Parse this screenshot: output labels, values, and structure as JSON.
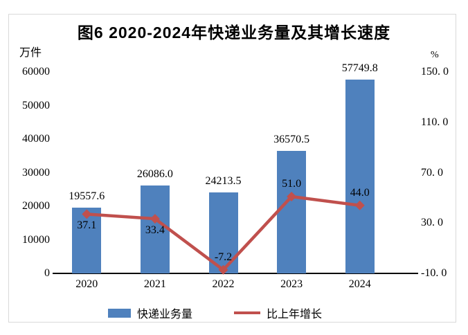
{
  "title": "图6 2020-2024年快递业务量及其增长速度",
  "left_axis": {
    "unit": "万件",
    "ticks": [
      {
        "label": "60000",
        "value": 60000
      },
      {
        "label": "50000",
        "value": 50000
      },
      {
        "label": "40000",
        "value": 40000
      },
      {
        "label": "30000",
        "value": 30000
      },
      {
        "label": "20000",
        "value": 20000
      },
      {
        "label": "10000",
        "value": 10000
      },
      {
        "label": "0",
        "value": 0
      }
    ]
  },
  "right_axis": {
    "unit": "%",
    "ticks": [
      {
        "label": "150. 0",
        "value": 150
      },
      {
        "label": "110. 0",
        "value": 110
      },
      {
        "label": "70. 0",
        "value": 70
      },
      {
        "label": "30. 0",
        "value": 30
      },
      {
        "label": "-10. 0",
        "value": -10
      }
    ]
  },
  "chart_data": {
    "type": "combo-bar-line",
    "title": "图6 2020-2024年快递业务量及其增长速度",
    "categories": [
      "2020",
      "2021",
      "2022",
      "2023",
      "2024"
    ],
    "series": [
      {
        "name": "快递业务量",
        "type": "bar",
        "axis": "left",
        "color": "#4F81BD",
        "values": [
          19557.6,
          26086.0,
          24213.5,
          36570.5,
          57749.8
        ],
        "data_labels": [
          "19557.6",
          "26086.0",
          "24213.5",
          "36570.5",
          "57749.8"
        ]
      },
      {
        "name": "比上年增长",
        "type": "line",
        "axis": "right",
        "color": "#C0504D",
        "marker": "diamond",
        "values": [
          37.1,
          33.4,
          -7.2,
          51.0,
          44.0
        ],
        "data_labels": [
          "37.1",
          "33.4",
          "-7.2",
          "51.0",
          "44.0"
        ],
        "label_placement": [
          "below",
          "below",
          "above",
          "above",
          "above"
        ]
      }
    ],
    "left_ylabel": "万件",
    "right_ylabel": "%",
    "left_ylim": [
      0,
      60000
    ],
    "right_ylim": [
      -10,
      150
    ],
    "grid": false,
    "legend_position": "bottom"
  },
  "legend": {
    "items": [
      {
        "label": "快递业务量",
        "marker": "bar",
        "color": "#4F81BD"
      },
      {
        "label": "比上年增长",
        "marker": "line-diamond",
        "color": "#C0504D"
      }
    ]
  },
  "colors": {
    "bar": "#4F81BD",
    "line": "#C0504D",
    "axis": "#000000",
    "frame_border": "#d9d9d9",
    "text": "#000000"
  }
}
